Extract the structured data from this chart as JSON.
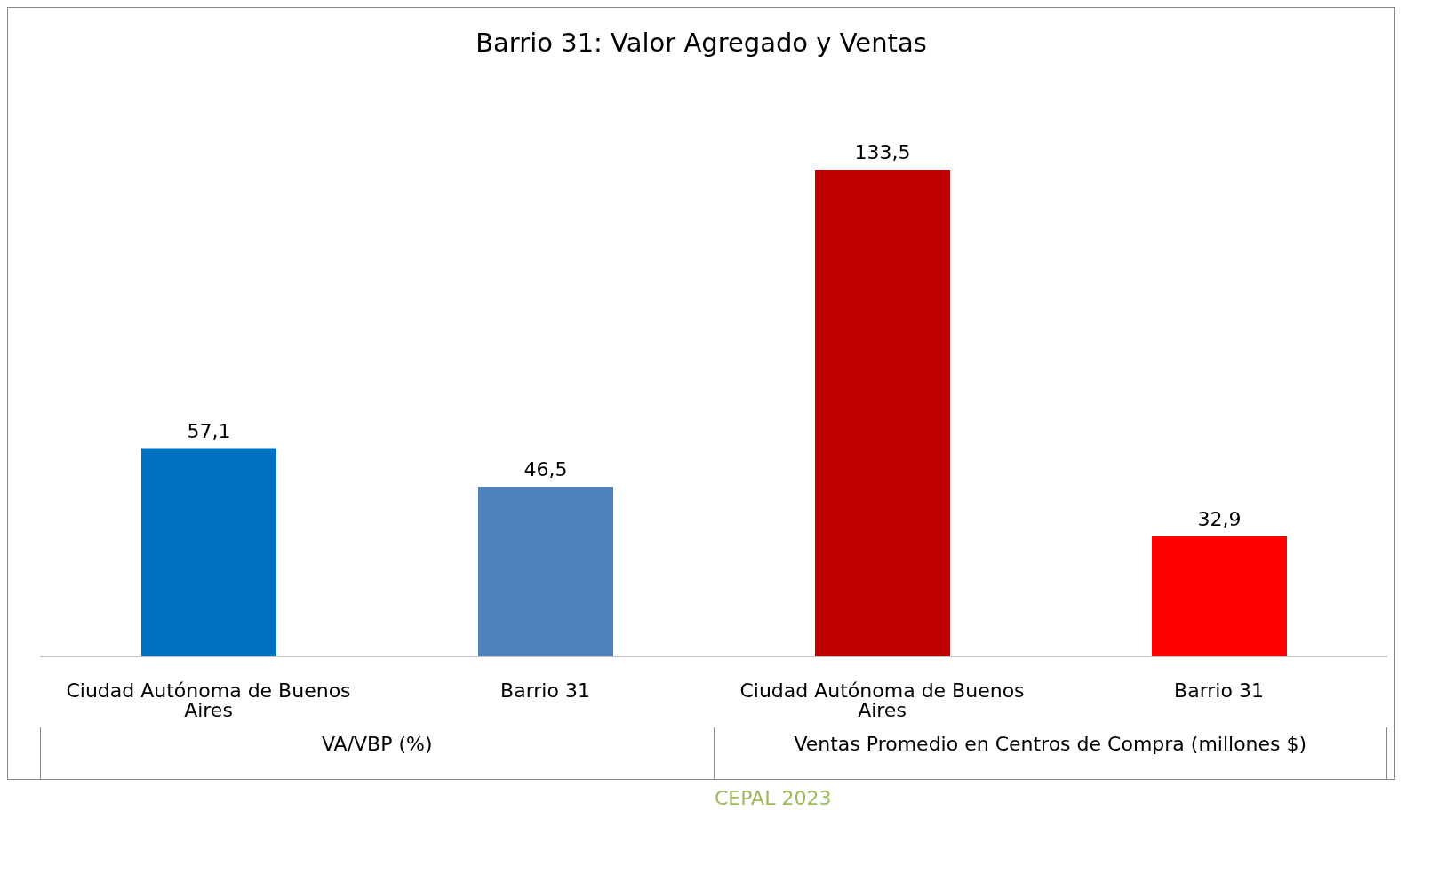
{
  "chart_data": {
    "type": "bar",
    "title": "Barrio 31: Valor Agregado y Ventas",
    "categories": [
      "Ciudad Autónoma de Buenos Aires",
      "Barrio 31",
      "Ciudad Autónoma de Buenos Aires",
      "Barrio 31"
    ],
    "values": [
      57.1,
      46.5,
      133.5,
      32.9
    ],
    "colors": [
      "#0070c0",
      "#4f81bd",
      "#c00000",
      "#ff0000"
    ],
    "value_labels": [
      "57,1",
      "46,5",
      "133,5",
      "32,9"
    ],
    "annotations": [
      "VA/VBP (%)",
      "Ventas Promedio en Centros de Compra (millones $)",
      "CEPAL 2023"
    ]
  }
}
